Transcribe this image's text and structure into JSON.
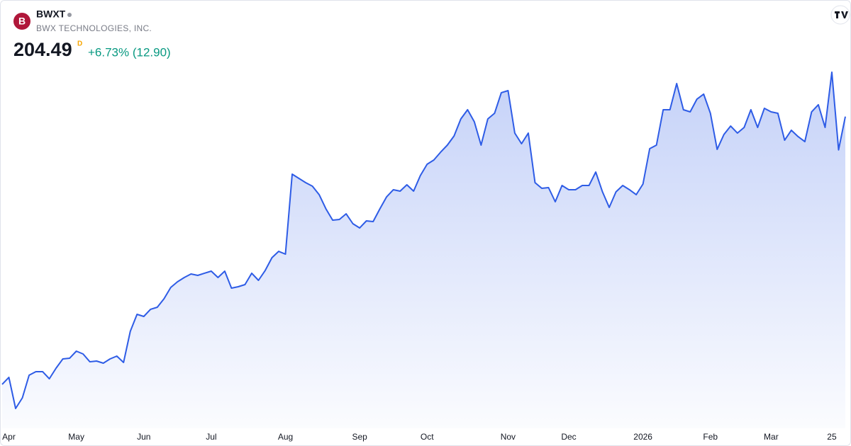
{
  "header": {
    "logo": "B",
    "ticker": "BWXT",
    "name": "BWX TECHNOLOGIES, INC.",
    "price": "204.49",
    "interval": "D",
    "change": "+6.73% (12.90)"
  },
  "chart_data": {
    "type": "area",
    "color": "#2e5ce6",
    "ylim": [
      85,
      225
    ],
    "categories": [
      null,
      "Apr",
      null,
      null,
      null,
      null,
      null,
      null,
      null,
      null,
      null,
      "May",
      null,
      null,
      null,
      null,
      null,
      null,
      null,
      null,
      null,
      "Jun",
      null,
      null,
      null,
      null,
      null,
      null,
      null,
      null,
      null,
      "Jul",
      null,
      null,
      null,
      null,
      null,
      null,
      null,
      null,
      null,
      null,
      "Aug",
      null,
      null,
      null,
      null,
      null,
      null,
      null,
      null,
      null,
      null,
      "Sep",
      null,
      null,
      null,
      null,
      null,
      null,
      null,
      null,
      null,
      "Oct",
      null,
      null,
      null,
      null,
      null,
      null,
      null,
      null,
      null,
      null,
      null,
      "Nov",
      null,
      null,
      null,
      null,
      null,
      null,
      null,
      null,
      "Dec",
      null,
      null,
      null,
      null,
      null,
      null,
      null,
      null,
      null,
      null,
      "2026",
      null,
      null,
      null,
      null,
      null,
      null,
      null,
      null,
      null,
      "Feb",
      null,
      null,
      null,
      null,
      null,
      null,
      null,
      null,
      "Mar",
      null,
      null,
      null,
      null,
      null,
      null,
      null,
      null,
      "25",
      null,
      null
    ],
    "values": [
      100.65,
      103.39,
      91.31,
      95.43,
      104.22,
      105.59,
      105.59,
      102.84,
      106.96,
      110.53,
      110.8,
      113.55,
      112.45,
      109.43,
      109.71,
      108.88,
      110.53,
      111.63,
      109.16,
      121.24,
      127.82,
      127.0,
      129.75,
      130.57,
      133.86,
      138.25,
      140.45,
      142.1,
      143.47,
      142.92,
      143.75,
      144.57,
      142.1,
      144.57,
      137.98,
      138.53,
      139.35,
      143.75,
      141.0,
      144.84,
      149.78,
      152.25,
      151.16,
      182.18,
      180.53,
      178.88,
      177.51,
      174.22,
      168.73,
      164.33,
      164.61,
      166.8,
      162.96,
      161.31,
      164.06,
      163.78,
      168.73,
      173.39,
      176.14,
      175.59,
      178.06,
      175.59,
      181.63,
      186.02,
      187.67,
      190.69,
      193.43,
      197.0,
      203.59,
      207.16,
      202.49,
      193.43,
      203.59,
      205.78,
      213.75,
      214.57,
      198.1,
      193.98,
      198.1,
      178.88,
      176.69,
      176.96,
      171.47,
      177.78,
      176.14,
      176.14,
      177.78,
      177.78,
      183.0,
      175.31,
      169.27,
      175.31,
      177.78,
      176.14,
      174.22,
      178.33,
      192.06,
      193.43,
      207.16,
      207.16,
      217.31,
      207.16,
      206.33,
      211.27,
      213.2,
      205.78,
      191.78,
      197.55,
      200.84,
      198.1,
      200.29,
      207.16,
      200.29,
      207.71,
      206.33,
      205.78,
      195.35,
      199.2,
      196.73,
      194.8,
      206.33,
      209.08,
      200.29,
      221.71,
      191.59,
      204.49
    ]
  }
}
